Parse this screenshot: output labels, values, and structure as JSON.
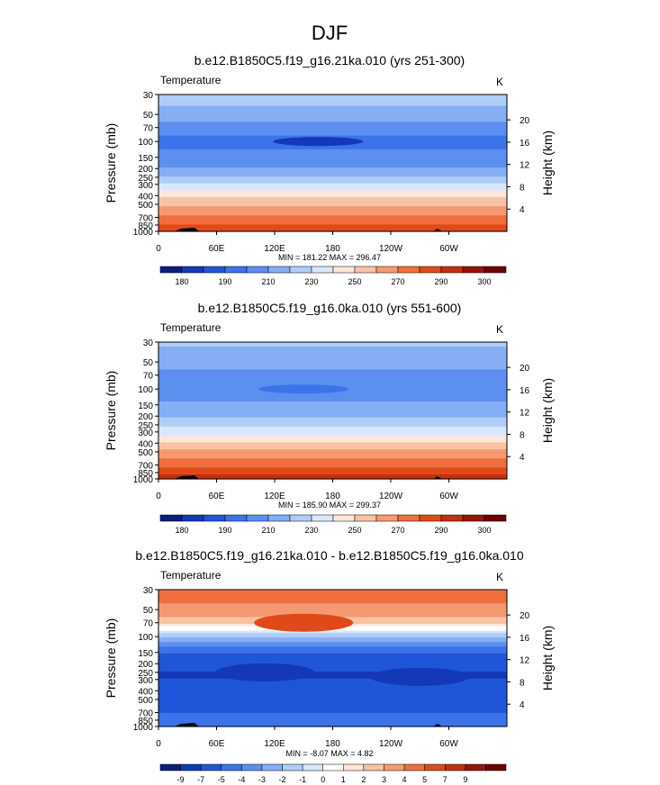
{
  "figure_title": "DJF",
  "colors": {
    "abs_scale": [
      "#0a1f7a",
      "#1339b8",
      "#1f55d9",
      "#3b73e8",
      "#5c8ff0",
      "#86aef5",
      "#b0cdf8",
      "#d8e7fb",
      "#fde6da",
      "#f9c3a4",
      "#f59a70",
      "#ef6f3e",
      "#e04a1b",
      "#c2300f",
      "#951408",
      "#6b0204"
    ],
    "diff_scale": [
      "#0a1f7a",
      "#1339b8",
      "#1f55d9",
      "#3b73e8",
      "#5c8ff0",
      "#86aef5",
      "#b0cdf8",
      "#d8e7fb",
      "#ffffff",
      "#fde6da",
      "#f9c3a4",
      "#f59a70",
      "#ef6f3e",
      "#e04a1b",
      "#c2300f",
      "#951408",
      "#6b0204"
    ]
  },
  "chart_data": [
    {
      "type": "heatmap",
      "title": "b.e12.B1850C5.f19_g16.21ka.010 (yrs 251-300)",
      "left_label": "Temperature",
      "right_label": "K",
      "ylabel": "Pressure (mb)",
      "ylabel_right": "Height (km)",
      "y_ticks": [
        "30",
        "50",
        "70",
        "100",
        "150",
        "200",
        "250",
        "300",
        "400",
        "500",
        "700",
        "850",
        "1000"
      ],
      "y_ticks_right": [
        "20",
        "16",
        "12",
        "8",
        "4"
      ],
      "x_ticks": [
        "0",
        "60E",
        "120E",
        "180",
        "120W",
        "60W"
      ],
      "stats": "MIN = 181.22  MAX = 296.47",
      "colorbar_labels": [
        "180",
        "190",
        "210",
        "230",
        "250",
        "270",
        "290",
        "300"
      ],
      "colorbar_levels": 16,
      "y_range_mb": [
        30,
        1000
      ],
      "profile_K": [
        {
          "p": 30,
          "t": 223
        },
        {
          "p": 50,
          "t": 218
        },
        {
          "p": 70,
          "t": 205
        },
        {
          "p": 100,
          "t": 195
        },
        {
          "p": 150,
          "t": 204
        },
        {
          "p": 200,
          "t": 210
        },
        {
          "p": 250,
          "t": 222
        },
        {
          "p": 300,
          "t": 230
        },
        {
          "p": 400,
          "t": 247
        },
        {
          "p": 500,
          "t": 258
        },
        {
          "p": 700,
          "t": 272
        },
        {
          "p": 850,
          "t": 282
        },
        {
          "p": 1000,
          "t": 290
        }
      ],
      "anomalies": [
        {
          "lon": 165,
          "p": 100,
          "t": 183
        }
      ]
    },
    {
      "type": "heatmap",
      "title": "b.e12.B1850C5.f19_g16.0ka.010 (yrs 551-600)",
      "left_label": "Temperature",
      "right_label": "K",
      "ylabel": "Pressure (mb)",
      "ylabel_right": "Height (km)",
      "y_ticks": [
        "30",
        "50",
        "70",
        "100",
        "150",
        "200",
        "250",
        "300",
        "400",
        "500",
        "700",
        "850",
        "1000"
      ],
      "y_ticks_right": [
        "20",
        "16",
        "12",
        "8",
        "4"
      ],
      "x_ticks": [
        "0",
        "60E",
        "120E",
        "180",
        "120W",
        "60W"
      ],
      "stats": "MIN = 185.90  MAX = 299.37",
      "colorbar_labels": [
        "180",
        "190",
        "210",
        "230",
        "250",
        "270",
        "290",
        "300"
      ],
      "colorbar_levels": 16,
      "y_range_mb": [
        30,
        1000
      ],
      "profile_K": [
        {
          "p": 30,
          "t": 222
        },
        {
          "p": 50,
          "t": 214
        },
        {
          "p": 70,
          "t": 206
        },
        {
          "p": 100,
          "t": 202
        },
        {
          "p": 150,
          "t": 212
        },
        {
          "p": 200,
          "t": 218
        },
        {
          "p": 250,
          "t": 228
        },
        {
          "p": 300,
          "t": 236
        },
        {
          "p": 400,
          "t": 252
        },
        {
          "p": 500,
          "t": 263
        },
        {
          "p": 700,
          "t": 278
        },
        {
          "p": 850,
          "t": 287
        },
        {
          "p": 1000,
          "t": 294
        }
      ],
      "anomalies": [
        {
          "lon": 150,
          "p": 100,
          "t": 198
        }
      ]
    },
    {
      "type": "heatmap",
      "title": "b.e12.B1850C5.f19_g16.21ka.010 - b.e12.B1850C5.f19_g16.0ka.010",
      "left_label": "Temperature",
      "right_label": "K",
      "ylabel": "Pressure (mb)",
      "ylabel_right": "Height (km)",
      "y_ticks": [
        "30",
        "50",
        "70",
        "100",
        "150",
        "200",
        "250",
        "300",
        "400",
        "500",
        "700",
        "850",
        "1000"
      ],
      "y_ticks_right": [
        "20",
        "16",
        "12",
        "8",
        "4"
      ],
      "x_ticks": [
        "0",
        "60E",
        "120E",
        "180",
        "120W",
        "60W"
      ],
      "stats": "MIN = -8.07  MAX =  4.82",
      "colorbar_labels": [
        "-9",
        "-7",
        "-5",
        "-4",
        "-3",
        "-2",
        "-1",
        "0",
        "1",
        "2",
        "3",
        "4",
        "5",
        "7",
        "9"
      ],
      "colorbar_levels": 17,
      "y_range_mb": [
        30,
        1000
      ],
      "profile_K": [
        {
          "p": 30,
          "t": 4
        },
        {
          "p": 50,
          "t": 2.5
        },
        {
          "p": 70,
          "t": 1.5
        },
        {
          "p": 100,
          "t": -2
        },
        {
          "p": 150,
          "t": -5
        },
        {
          "p": 200,
          "t": -6
        },
        {
          "p": 250,
          "t": -7
        },
        {
          "p": 300,
          "t": -7
        },
        {
          "p": 400,
          "t": -6.5
        },
        {
          "p": 500,
          "t": -6
        },
        {
          "p": 700,
          "t": -5
        },
        {
          "p": 850,
          "t": -4
        },
        {
          "p": 1000,
          "t": -4
        }
      ],
      "anomalies": [
        {
          "lon": 150,
          "p": 70,
          "t": 4.5
        },
        {
          "lon": 110,
          "p": 250,
          "t": -8
        },
        {
          "lon": 270,
          "p": 280,
          "t": -8
        }
      ]
    }
  ]
}
